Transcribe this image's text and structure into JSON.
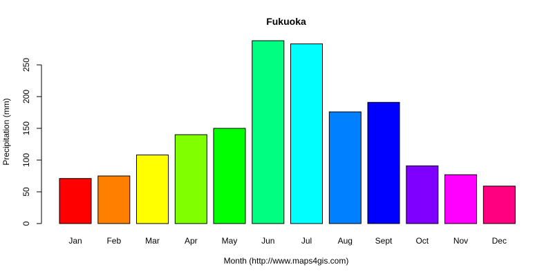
{
  "chart_data": {
    "type": "bar",
    "title": "Fukuoka",
    "xlabel": "Month (http://www.maps4gis.com)",
    "ylabel": "Precipitation (mm)",
    "categories": [
      "Jan",
      "Feb",
      "Mar",
      "Apr",
      "May",
      "Jun",
      "Jul",
      "Aug",
      "Sept",
      "Oct",
      "Nov",
      "Dec"
    ],
    "values": [
      71,
      75,
      108,
      140,
      150,
      288,
      283,
      176,
      191,
      91,
      77,
      59
    ],
    "colors": [
      "#FF0000",
      "#FF8000",
      "#FFFF00",
      "#80FF00",
      "#00FF00",
      "#00FF80",
      "#00FFFF",
      "#0080FF",
      "#0000FF",
      "#8000FF",
      "#FF00FF",
      "#FF0080"
    ],
    "yticks": [
      0,
      50,
      100,
      150,
      200,
      250
    ],
    "ylim": [
      0,
      300
    ],
    "grid": false,
    "legend": "none"
  }
}
